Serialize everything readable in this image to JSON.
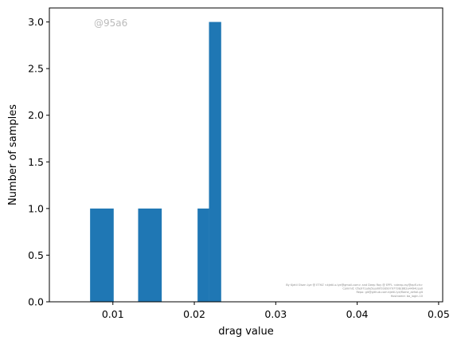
{
  "chart_data": {
    "type": "bar",
    "title": "",
    "xlabel": "drag value",
    "ylabel": "Number of samples",
    "xlim": [
      0.0022,
      0.0505
    ],
    "ylim": [
      0,
      3.15
    ],
    "xticks": [
      0.01,
      0.02,
      0.03,
      0.04,
      0.05
    ],
    "xtick_labels": [
      "0.01",
      "0.02",
      "0.03",
      "0.04",
      "0.05"
    ],
    "yticks": [
      0.0,
      0.5,
      1.0,
      1.5,
      2.0,
      2.5,
      3.0
    ],
    "ytick_labels": [
      "0.0",
      "0.5",
      "1.0",
      "1.5",
      "2.0",
      "2.5",
      "3.0"
    ],
    "bins": [
      {
        "x0": 0.0072,
        "x1": 0.0101,
        "count": 1
      },
      {
        "x0": 0.0131,
        "x1": 0.016,
        "count": 1
      },
      {
        "x0": 0.0204,
        "x1": 0.0218,
        "count": 1
      },
      {
        "x0": 0.0218,
        "x1": 0.0233,
        "count": 3
      }
    ],
    "bar_color": "#1f77b4",
    "grid": false,
    "legend": "none",
    "annotations": {
      "id_label": "@95a6",
      "credit_lines": [
        "By Kjetil Olsen Lye @ ETHZ <kjetil.o.lye@gmail.com> and Deep Ray @ EPFL <deep.ray@epfl.ch>",
        "Commit: 05e971a0e5ea00f33d93797738c862a4494cea0",
        "Repo: git@github.com:kjetil-lye/flame_airfoil.git",
        "Hostname: ba_login.10"
      ]
    }
  }
}
